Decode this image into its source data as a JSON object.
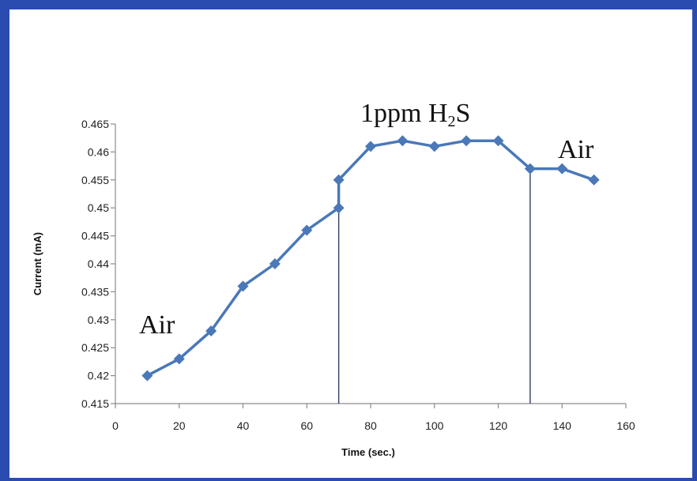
{
  "chart_data": {
    "type": "line",
    "title": "",
    "xlabel": "Time (sec.)",
    "ylabel": "Current (mA)",
    "xlim": [
      0,
      160
    ],
    "ylim": [
      0.415,
      0.465
    ],
    "x_ticks": [
      0,
      20,
      40,
      60,
      80,
      100,
      120,
      140,
      160
    ],
    "y_ticks": [
      "0.415",
      "0.42",
      "0.425",
      "0.43",
      "0.435",
      "0.44",
      "0.445",
      "0.45",
      "0.455",
      "0.46",
      "0.465"
    ],
    "grid": false,
    "series": [
      {
        "color": "#4a78b8",
        "marker": "diamond",
        "points": [
          [
            10,
            0.42
          ],
          [
            20,
            0.423
          ],
          [
            30,
            0.428
          ],
          [
            40,
            0.436
          ],
          [
            50,
            0.44
          ],
          [
            60,
            0.446
          ],
          [
            70,
            0.45
          ],
          [
            70,
            0.455
          ],
          [
            80,
            0.461
          ],
          [
            90,
            0.462
          ],
          [
            100,
            0.461
          ],
          [
            110,
            0.462
          ],
          [
            120,
            0.462
          ],
          [
            130,
            0.457
          ],
          [
            140,
            0.457
          ],
          [
            150,
            0.455
          ]
        ]
      }
    ],
    "vertical_lines": [
      70,
      130
    ],
    "annotations": {
      "air_start": "Air",
      "h2s_label_main": "1ppm H",
      "h2s_label_sub": "2",
      "h2s_label_end": "S",
      "air_end": "Air"
    }
  },
  "colors": {
    "frame": "#2a4cb0",
    "series": "#4a78b8",
    "axis": "#8c8c8c",
    "vline": "#2f3f66"
  }
}
